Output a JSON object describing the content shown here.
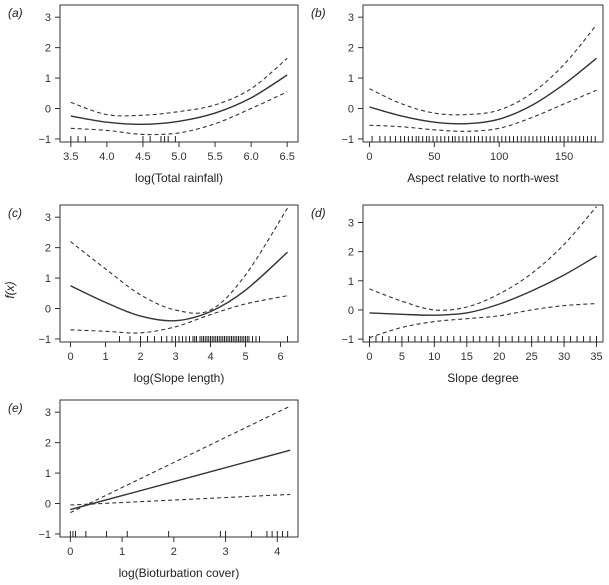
{
  "ylabel": "f(x)",
  "ylabel_var": "x",
  "chart_data": [
    {
      "type": "line",
      "panel_label": "(a)",
      "xlabel": "log(Total rainfall)",
      "xlim": [
        3.35,
        6.65
      ],
      "ylim": [
        -1.1,
        3.4
      ],
      "xticks": [
        3.5,
        4.0,
        4.5,
        5.0,
        5.5,
        6.0,
        6.5
      ],
      "xtick_labels": [
        "3.5",
        "4.0",
        "4.5",
        "5.0",
        "5.5",
        "6.0",
        "6.5"
      ],
      "yticks": [
        -1,
        0,
        1,
        2,
        3
      ],
      "ytick_labels": [
        "−1",
        "0",
        "1",
        "2",
        "3"
      ],
      "series": [
        {
          "style": "solid",
          "x": [
            3.5,
            4.0,
            4.5,
            5.0,
            5.5,
            6.0,
            6.5
          ],
          "y": [
            -0.25,
            -0.45,
            -0.52,
            -0.42,
            -0.15,
            0.35,
            1.1
          ]
        },
        {
          "style": "dashed",
          "x": [
            3.5,
            4.0,
            4.5,
            5.0,
            5.5,
            6.0,
            6.5
          ],
          "y": [
            0.2,
            -0.2,
            -0.22,
            -0.1,
            0.12,
            0.65,
            1.65
          ]
        },
        {
          "style": "dashed",
          "x": [
            3.5,
            4.0,
            4.5,
            5.0,
            5.5,
            6.0,
            6.5
          ],
          "y": [
            -0.65,
            -0.72,
            -0.85,
            -0.8,
            -0.5,
            0.0,
            0.55
          ]
        }
      ],
      "rug": [
        3.5,
        3.6,
        3.7,
        4.5,
        4.6,
        4.75,
        4.8,
        4.85,
        4.95
      ]
    },
    {
      "type": "line",
      "panel_label": "(b)",
      "xlabel": "Aspect relative to north-west",
      "xlim": [
        -5,
        180
      ],
      "ylim": [
        -1.1,
        3.4
      ],
      "xticks": [
        0,
        50,
        100,
        150
      ],
      "xtick_labels": [
        "0",
        "50",
        "100",
        "150"
      ],
      "yticks": [
        -1,
        0,
        1,
        2,
        3
      ],
      "ytick_labels": [
        "−1",
        "0",
        "1",
        "2",
        "3"
      ],
      "series": [
        {
          "style": "solid",
          "x": [
            0,
            25,
            50,
            75,
            100,
            125,
            150,
            175
          ],
          "y": [
            0.05,
            -0.25,
            -0.45,
            -0.5,
            -0.35,
            0.1,
            0.8,
            1.65
          ]
        },
        {
          "style": "dashed",
          "x": [
            0,
            25,
            50,
            75,
            100,
            125,
            150,
            175
          ],
          "y": [
            0.65,
            0.15,
            -0.15,
            -0.2,
            -0.05,
            0.5,
            1.45,
            2.75
          ]
        },
        {
          "style": "dashed",
          "x": [
            0,
            25,
            50,
            75,
            100,
            125,
            150,
            175
          ],
          "y": [
            -0.55,
            -0.6,
            -0.7,
            -0.75,
            -0.65,
            -0.3,
            0.15,
            0.6
          ]
        }
      ],
      "rug": [
        2,
        8,
        12,
        16,
        20,
        24,
        27,
        30,
        33,
        36,
        38,
        41,
        44,
        46,
        49,
        52,
        55,
        58,
        61,
        64,
        66,
        69,
        72,
        75,
        78,
        81,
        84,
        87,
        90,
        93,
        96,
        99,
        102,
        105,
        108,
        111,
        114,
        117,
        120,
        123,
        126,
        129,
        132,
        135,
        138,
        141,
        144,
        147,
        150,
        153,
        156,
        159,
        162,
        165,
        168,
        171,
        174
      ]
    },
    {
      "type": "line",
      "panel_label": "(c)",
      "xlabel": "log(Slope length)",
      "xlim": [
        -0.3,
        6.5
      ],
      "ylim": [
        -1.1,
        3.4
      ],
      "xticks": [
        0,
        1,
        2,
        3,
        4,
        5,
        6
      ],
      "xtick_labels": [
        "0",
        "1",
        "2",
        "3",
        "4",
        "5",
        "6"
      ],
      "yticks": [
        -1,
        0,
        1,
        2,
        3
      ],
      "ytick_labels": [
        "−1",
        "0",
        "1",
        "2",
        "3"
      ],
      "series": [
        {
          "style": "solid",
          "x": [
            0,
            1,
            2,
            3,
            4,
            5,
            6.2
          ],
          "y": [
            0.75,
            0.2,
            -0.25,
            -0.4,
            -0.1,
            0.6,
            1.85
          ]
        },
        {
          "style": "dashed",
          "x": [
            0,
            1,
            2,
            3,
            4,
            5,
            6.2
          ],
          "y": [
            2.2,
            1.3,
            0.45,
            -0.05,
            -0.05,
            1.1,
            3.3
          ]
        },
        {
          "style": "dashed",
          "x": [
            0,
            1,
            2,
            3,
            4,
            5,
            6.2
          ],
          "y": [
            -0.7,
            -0.75,
            -0.8,
            -0.6,
            -0.2,
            0.15,
            0.42
          ]
        }
      ],
      "rug": [
        1.4,
        1.7,
        2.0,
        2.2,
        2.4,
        2.6,
        2.75,
        2.9,
        3.0,
        3.1,
        3.2,
        3.3,
        3.4,
        3.5,
        3.55,
        3.6,
        3.7,
        3.75,
        3.8,
        3.85,
        3.9,
        3.95,
        4.0,
        4.05,
        4.1,
        4.15,
        4.2,
        4.25,
        4.3,
        4.35,
        4.4,
        4.45,
        4.5,
        4.55,
        4.6,
        4.65,
        4.7,
        4.75,
        4.8,
        4.85,
        4.9,
        4.95,
        5.0,
        5.05,
        5.1,
        5.2,
        5.3,
        5.4,
        6.2
      ]
    },
    {
      "type": "line",
      "panel_label": "(d)",
      "xlabel": "Slope degree",
      "xlim": [
        -1,
        36
      ],
      "ylim": [
        -1.1,
        3.6
      ],
      "xticks": [
        0,
        5,
        10,
        15,
        20,
        25,
        30,
        35
      ],
      "xtick_labels": [
        "0",
        "5",
        "10",
        "15",
        "20",
        "25",
        "30",
        "35"
      ],
      "yticks": [
        -1,
        0,
        1,
        2,
        3
      ],
      "ytick_labels": [
        "−1",
        "0",
        "1",
        "2",
        "3"
      ],
      "series": [
        {
          "style": "solid",
          "x": [
            0,
            5,
            10,
            15,
            20,
            25,
            30,
            35
          ],
          "y": [
            -0.1,
            -0.15,
            -0.18,
            -0.1,
            0.2,
            0.65,
            1.2,
            1.85
          ]
        },
        {
          "style": "dashed",
          "x": [
            0,
            5,
            10,
            15,
            20,
            25,
            30,
            35
          ],
          "y": [
            0.72,
            0.3,
            0.0,
            0.1,
            0.55,
            1.25,
            2.25,
            3.55
          ]
        },
        {
          "style": "dashed",
          "x": [
            0,
            5,
            10,
            15,
            20,
            25,
            30,
            35
          ],
          "y": [
            -0.95,
            -0.6,
            -0.4,
            -0.3,
            -0.2,
            0.0,
            0.15,
            0.22
          ]
        }
      ],
      "rug": [
        0,
        1,
        2,
        3,
        4,
        5,
        6,
        7,
        8,
        9,
        10,
        11,
        12,
        13,
        14,
        15,
        16,
        17,
        18,
        19,
        20,
        21,
        22,
        23,
        24,
        25,
        26,
        27,
        28,
        29,
        30,
        31,
        32,
        33,
        34,
        35
      ]
    },
    {
      "type": "line",
      "panel_label": "(e)",
      "xlabel": "log(Bioturbation cover)",
      "xlim": [
        -0.2,
        4.4
      ],
      "ylim": [
        -1.1,
        3.4
      ],
      "xticks": [
        0,
        1,
        2,
        3,
        4
      ],
      "xtick_labels": [
        "0",
        "1",
        "2",
        "3",
        "4"
      ],
      "yticks": [
        -1,
        0,
        1,
        2,
        3
      ],
      "ytick_labels": [
        "−1",
        "0",
        "1",
        "2",
        "3"
      ],
      "series": [
        {
          "style": "solid",
          "x": [
            0,
            4.25
          ],
          "y": [
            -0.2,
            1.75
          ]
        },
        {
          "style": "dashed",
          "x": [
            0,
            4.25
          ],
          "y": [
            -0.3,
            3.2
          ]
        },
        {
          "style": "dashed",
          "x": [
            0,
            4.25
          ],
          "y": [
            -0.05,
            0.3
          ]
        }
      ],
      "rug": [
        0,
        0.05,
        0.1,
        0.3,
        0.7,
        1.1,
        1.9,
        2.9,
        3.0,
        3.5,
        3.8,
        3.9,
        4.0,
        4.1,
        4.2
      ]
    }
  ]
}
